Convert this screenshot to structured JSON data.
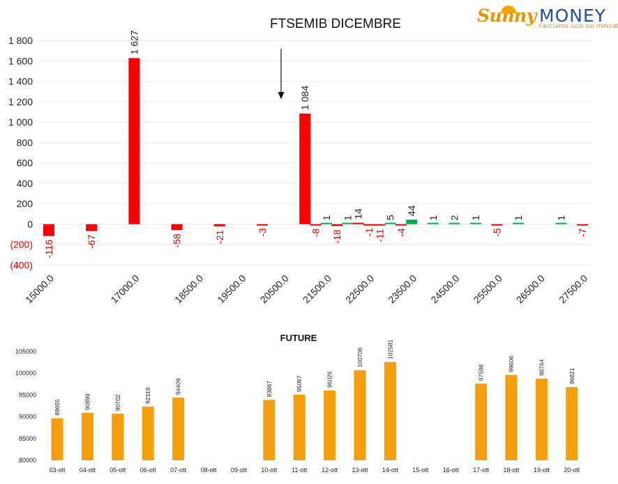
{
  "logo": {
    "sunny": "Sunny",
    "money": "MONEY",
    "tagline": "Facciamo luce sui mercati"
  },
  "chart_data": [
    {
      "type": "bar",
      "title": "FTSEMIB DICEMBRE",
      "xlabel": "",
      "ylabel": "",
      "ylim": [
        -400,
        1800
      ],
      "y_tick_labels": [
        "(400)",
        "(200)",
        "0",
        "200",
        "400",
        "600",
        "800",
        "1 000",
        "1 200",
        "1 400",
        "1 600",
        "1 800"
      ],
      "x_tick_labels": [
        "15000.0",
        "17000.0",
        "18500.0",
        "19500.0",
        "20500.0",
        "21500.0",
        "22500.0",
        "23500.0",
        "24500.0",
        "25500.0",
        "26500.0",
        "27500.0"
      ],
      "grid": true,
      "annotation": "arrow pointing down near strike 21250",
      "colors": {
        "positive_large": "#ff0000",
        "negative": "#ff0000",
        "positive_small": "#00b050"
      },
      "bars": [
        {
          "strike": 15000,
          "value": -116,
          "label": "-116",
          "color": "#ff0000"
        },
        {
          "strike": 16000,
          "value": -67,
          "label": "-67",
          "color": "#ff0000"
        },
        {
          "strike": 17000,
          "value": 1627,
          "label": "1 627",
          "color": "#ff0000"
        },
        {
          "strike": 18000,
          "value": -58,
          "label": "-58",
          "color": "#ff0000"
        },
        {
          "strike": 19000,
          "value": -21,
          "label": "-21",
          "color": "#ff0000"
        },
        {
          "strike": 20000,
          "value": -3,
          "label": "-3",
          "color": "#ff0000"
        },
        {
          "strike": 21000,
          "value": 1084,
          "label": "1 084",
          "color": "#ff0000"
        },
        {
          "strike": 21250,
          "value": -8,
          "label": "-8",
          "color": "#ff0000"
        },
        {
          "strike": 21500,
          "value": 1,
          "label": "1",
          "color": "#00b050"
        },
        {
          "strike": 21750,
          "value": -18,
          "label": "-18",
          "color": "#ff0000"
        },
        {
          "strike": 22000,
          "value": 1,
          "label": "1",
          "color": "#00b050"
        },
        {
          "strike": 22250,
          "value": 14,
          "label": "14",
          "color": "#ff0000"
        },
        {
          "strike": 22500,
          "value": -1,
          "label": "-1",
          "color": "#ff0000"
        },
        {
          "strike": 22750,
          "value": -11,
          "label": "-11",
          "color": "#ff0000"
        },
        {
          "strike": 23000,
          "value": 5,
          "label": "5",
          "color": "#00b050"
        },
        {
          "strike": 23250,
          "value": -4,
          "label": "-4",
          "color": "#ff0000"
        },
        {
          "strike": 23500,
          "value": 44,
          "label": "44",
          "color": "#00b050"
        },
        {
          "strike": 24000,
          "value": 1,
          "label": "1",
          "color": "#00b050"
        },
        {
          "strike": 24500,
          "value": 2,
          "label": "2",
          "color": "#00b050"
        },
        {
          "strike": 25000,
          "value": 1,
          "label": "1",
          "color": "#00b050"
        },
        {
          "strike": 25500,
          "value": -5,
          "label": "-5",
          "color": "#ff0000"
        },
        {
          "strike": 26000,
          "value": 1,
          "label": "1",
          "color": "#00b050"
        },
        {
          "strike": 27000,
          "value": 1,
          "label": "1",
          "color": "#00b050"
        },
        {
          "strike": 27500,
          "value": -7,
          "label": "-7",
          "color": "#ff0000"
        }
      ]
    },
    {
      "type": "bar",
      "title": "FUTURE",
      "xlabel": "",
      "ylabel": "",
      "ylim": [
        80000,
        105000
      ],
      "y_tick_labels": [
        "80000",
        "85000",
        "90000",
        "95000",
        "100000",
        "105000"
      ],
      "grid": false,
      "bar_color": "#f59e0b",
      "categories": [
        "03-ott",
        "04-ott",
        "05-ott",
        "06-ott",
        "07-ott",
        "08-ott",
        "09-ott",
        "10-ott",
        "11-ott",
        "12-ott",
        "13-ott",
        "14-ott",
        "15-ott",
        "16-ott",
        "17-ott",
        "18-ott",
        "19-ott",
        "20-ott"
      ],
      "values": [
        89655,
        90899,
        90702,
        92319,
        94409,
        null,
        null,
        93867,
        95067,
        96026,
        100706,
        102581,
        null,
        null,
        97598,
        99606,
        98764,
        96821
      ],
      "value_labels": [
        "89655",
        "90899",
        "90702",
        "92319",
        "94409",
        "",
        "",
        "93867",
        "95067",
        "96026",
        "100706",
        "102581",
        "",
        "",
        "97598",
        "99606",
        "98764",
        "96821"
      ]
    }
  ]
}
